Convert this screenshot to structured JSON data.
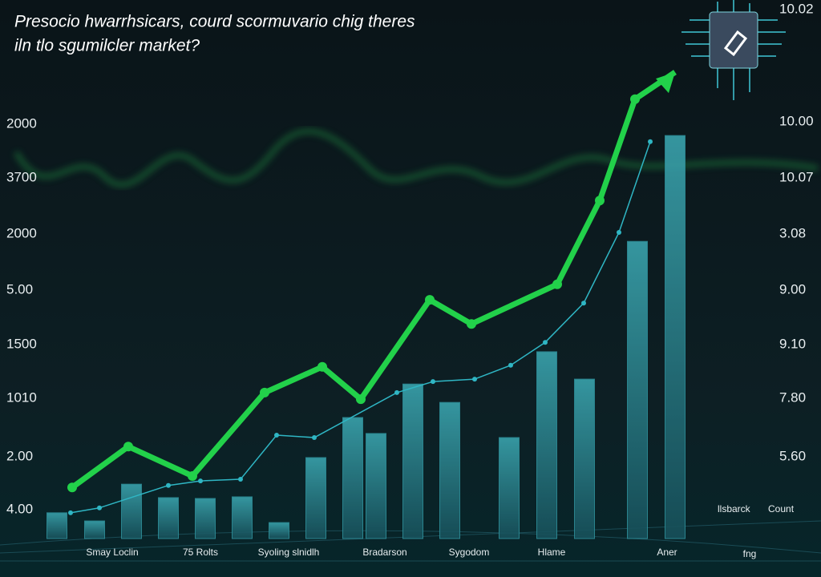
{
  "chart_data": {
    "type": "bar",
    "title_lines": [
      "Presocio hwarrhsicars, courd scormuvario chig theres",
      "iln tlo sgumilcler market?"
    ],
    "y_axis_labels": [
      "2000",
      "3700",
      "2000",
      "5.00",
      "1500",
      "1010",
      "2.00",
      "4.00"
    ],
    "y2_axis_labels": [
      "10.02",
      "10.00",
      "10.07",
      "3.08",
      "9.00",
      "9.10",
      "7.80",
      "5.60"
    ],
    "x_labels": [
      "Smay Loclin",
      "75 Rolts",
      "Syoling slnidlh",
      "Bradarson",
      "Sygodom",
      "Hlame",
      "Aner",
      "fng"
    ],
    "legend_labels": [
      "llsbarck",
      "Count"
    ],
    "ylim": [
      0,
      120
    ],
    "bars": {
      "color": "#2e8f9a",
      "values": [
        6.3,
        4.3,
        13.3,
        10,
        9.8,
        10.2,
        3.9,
        19.8,
        29.6,
        25.7,
        37.8,
        33.3,
        24.7,
        45.7,
        39,
        72.7,
        98.6
      ]
    },
    "series": [
      {
        "color": "#22d14a",
        "values": [
          12.5,
          22.5,
          15.3,
          35.7,
          42,
          34.1,
          58.4,
          52.5,
          62.2,
          82.7,
          107.5,
          114.1
        ]
      },
      {
        "color": "#2fb6c4",
        "values": [
          6.3,
          7.5,
          13,
          14.1,
          14.5,
          25.3,
          24.7,
          35.7,
          38.4,
          39,
          42.4,
          48,
          57.6,
          74.9,
          97.1
        ]
      }
    ]
  }
}
